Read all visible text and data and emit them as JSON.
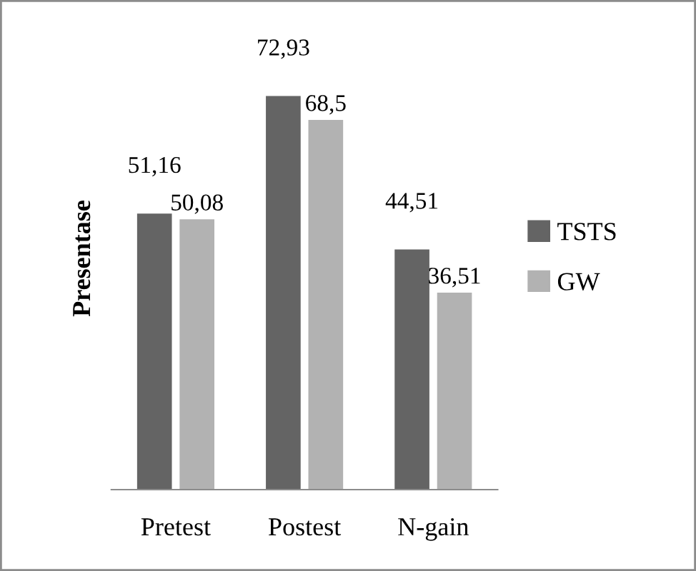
{
  "chart_data": {
    "type": "bar",
    "ylabel": "Presentase",
    "categories": [
      "Pretest",
      "Postest",
      "N-gain"
    ],
    "series": [
      {
        "name": "TSTS",
        "color": "#646464",
        "values": [
          51.16,
          72.93,
          44.51
        ],
        "value_labels": [
          "51,16",
          "72,93",
          "44,51"
        ]
      },
      {
        "name": "GW",
        "color": "#b2b2b2",
        "values": [
          50.08,
          68.5,
          36.51
        ],
        "value_labels": [
          "50,08",
          "68,5",
          "36,51"
        ]
      }
    ],
    "relative": false,
    "legend": "right",
    "grid": false
  }
}
